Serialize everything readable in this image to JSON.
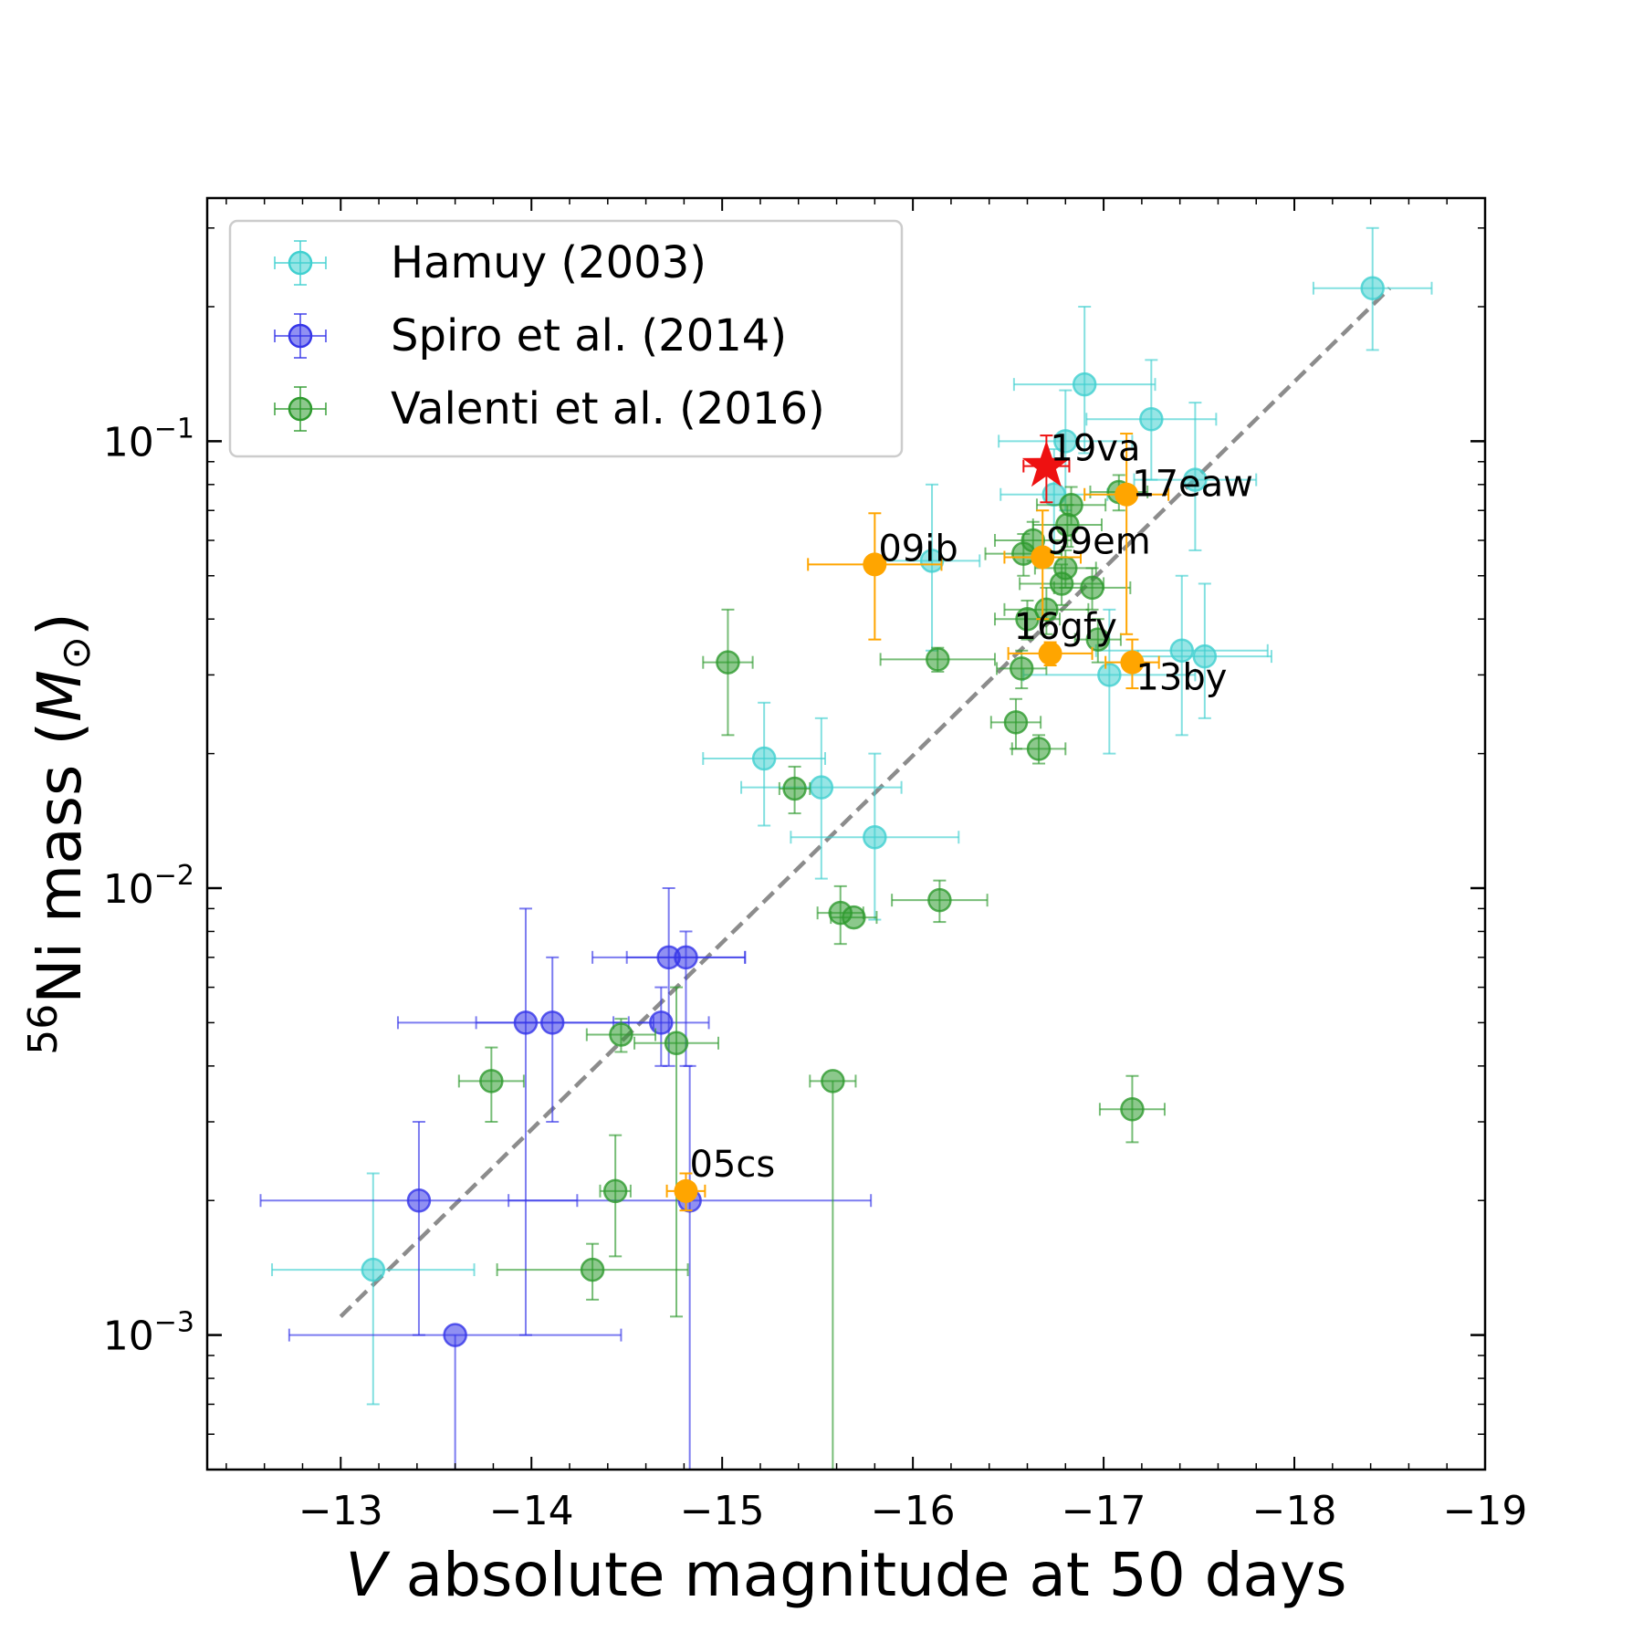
{
  "chart_data": {
    "type": "scatter",
    "title": "",
    "xlabel_italic": "V",
    "xlabel_rest": " absolute magnitude at 50 days",
    "ylabel_sup": "56",
    "ylabel_main": "Ni mass (",
    "ylabel_m": "M",
    "ylabel_sun": "⊙",
    "ylabel_close": ")",
    "xlim": [
      -12.3,
      -19.0
    ],
    "ylim": [
      0.0005,
      0.35
    ],
    "yscale": "log",
    "xticks": [
      -13,
      -14,
      -15,
      -16,
      -17,
      -18,
      -19
    ],
    "xtick_labels": [
      "−13",
      "−14",
      "−15",
      "−16",
      "−17",
      "−18",
      "−19"
    ],
    "yticks": [
      0.001,
      0.01,
      0.1
    ],
    "ytick_bases": [
      "10",
      "10",
      "10"
    ],
    "ytick_exps": [
      "−3",
      "−2",
      "−1"
    ],
    "legend": {
      "position": "top-left",
      "entries": [
        {
          "label": "Hamuy (2003)",
          "series": "hamuy"
        },
        {
          "label": "Spiro et al. (2014)",
          "series": "spiro"
        },
        {
          "label": "Valenti et al. (2016)",
          "series": "valenti"
        }
      ]
    },
    "fit_line": {
      "x": [
        -13.0,
        -18.5
      ],
      "y": [
        0.0011,
        0.22
      ],
      "color": "#8c8c8c",
      "style": "dashed"
    },
    "series": [
      {
        "name": "Hamuy (2003)",
        "key": "hamuy",
        "color": "#40d0d0",
        "points": [
          {
            "x": -13.17,
            "y": 0.0014,
            "xerr": [
              0.53,
              0.53
            ],
            "yerr": [
              0.0007,
              0.0009
            ]
          },
          {
            "x": -15.22,
            "y": 0.0195,
            "xerr": [
              0.32,
              0.32
            ],
            "yerr": [
              0.0057,
              0.0065
            ]
          },
          {
            "x": -15.52,
            "y": 0.0168,
            "xerr": [
              0.42,
              0.42
            ],
            "yerr": [
              0.0063,
              0.0072
            ]
          },
          {
            "x": -15.8,
            "y": 0.013,
            "xerr": [
              0.44,
              0.44
            ],
            "yerr": [
              0.0045,
              0.007
            ]
          },
          {
            "x": -16.1,
            "y": 0.054,
            "xerr": [
              0.25,
              0.25
            ],
            "yerr": [
              0.02,
              0.026
            ]
          },
          {
            "x": -16.74,
            "y": 0.076,
            "xerr": [
              0.28,
              0.28
            ],
            "yerr": [
              0.02,
              0.02
            ]
          },
          {
            "x": -16.8,
            "y": 0.1,
            "xerr": [
              0.35,
              0.35
            ],
            "yerr": [
              0.03,
              0.03
            ]
          },
          {
            "x": -16.9,
            "y": 0.134,
            "xerr": [
              0.37,
              0.37
            ],
            "yerr": [
              0.04,
              0.066
            ]
          },
          {
            "x": -17.25,
            "y": 0.112,
            "xerr": [
              0.34,
              0.34
            ],
            "yerr": [
              0.03,
              0.04
            ]
          },
          {
            "x": -17.48,
            "y": 0.082,
            "xerr": [
              0.32,
              0.32
            ],
            "yerr": [
              0.025,
              0.04
            ]
          },
          {
            "x": -17.03,
            "y": 0.03,
            "xerr": [
              0.45,
              0.45
            ],
            "yerr": [
              0.01,
              0.012
            ]
          },
          {
            "x": -17.41,
            "y": 0.034,
            "xerr": [
              0.45,
              0.45
            ],
            "yerr": [
              0.012,
              0.016
            ]
          },
          {
            "x": -17.53,
            "y": 0.033,
            "xerr": [
              0.35,
              0.35
            ],
            "yerr": [
              0.009,
              0.015
            ]
          },
          {
            "x": -18.41,
            "y": 0.22,
            "xerr": [
              0.31,
              0.31
            ],
            "yerr": [
              0.06,
              0.08
            ]
          }
        ]
      },
      {
        "name": "Spiro et al. (2014)",
        "key": "spiro",
        "color": "#3535e8",
        "points": [
          {
            "x": -13.41,
            "y": 0.002,
            "xerr": [
              0.83,
              0.83
            ],
            "yerr": [
              0.001,
              0.001
            ]
          },
          {
            "x": -13.6,
            "y": 0.001,
            "xerr": [
              0.87,
              0.87
            ],
            "yerr": [
              0.0005,
              0.0
            ]
          },
          {
            "x": -13.97,
            "y": 0.005,
            "xerr": [
              0.67,
              0.67
            ],
            "yerr": [
              0.004,
              0.004
            ]
          },
          {
            "x": -14.11,
            "y": 0.005,
            "xerr": [
              0.4,
              0.4
            ],
            "yerr": [
              0.002,
              0.002
            ]
          },
          {
            "x": -14.68,
            "y": 0.005,
            "xerr": [
              0.25,
              0.25
            ],
            "yerr": [
              0.001,
              0.001
            ]
          },
          {
            "x": -14.72,
            "y": 0.007,
            "xerr": [
              0.4,
              0.4
            ],
            "yerr": [
              0.003,
              0.003
            ]
          },
          {
            "x": -14.81,
            "y": 0.007,
            "xerr": [
              0.31,
              0.31
            ],
            "yerr": [
              0.003,
              0.001
            ]
          },
          {
            "x": -14.83,
            "y": 0.002,
            "xerr": [
              0.95,
              0.95
            ],
            "yerr": [
              0.0015,
              0.002
            ]
          }
        ]
      },
      {
        "name": "Valenti et al. (2016)",
        "key": "valenti",
        "color": "#2e9a2e",
        "points": [
          {
            "x": -13.79,
            "y": 0.0037,
            "xerr": [
              0.17,
              0.17
            ],
            "yerr": [
              0.0007,
              0.0007
            ]
          },
          {
            "x": -14.32,
            "y": 0.0014,
            "xerr": [
              0.5,
              0.5
            ],
            "yerr": [
              0.0002,
              0.0002
            ]
          },
          {
            "x": -14.44,
            "y": 0.0021,
            "xerr": [
              0.08,
              0.08
            ],
            "yerr": [
              0.0006,
              0.0007
            ]
          },
          {
            "x": -14.47,
            "y": 0.0047,
            "xerr": [
              0.18,
              0.18
            ],
            "yerr": [
              0.0004,
              0.0004
            ]
          },
          {
            "x": -14.76,
            "y": 0.0045,
            "xerr": [
              0.22,
              0.22
            ],
            "yerr": [
              0.0034,
              0.0015
            ]
          },
          {
            "x": -15.03,
            "y": 0.032,
            "xerr": [
              0.13,
              0.13
            ],
            "yerr": [
              0.01,
              0.01
            ]
          },
          {
            "x": -15.38,
            "y": 0.0167,
            "xerr": [
              0.08,
              0.08
            ],
            "yerr": [
              0.002,
              0.002
            ]
          },
          {
            "x": -15.58,
            "y": 0.0037,
            "xerr": [
              0.12,
              0.12
            ],
            "yerr": [
              0.0032,
              0.0
            ]
          },
          {
            "x": -15.62,
            "y": 0.0088,
            "xerr": [
              0.12,
              0.12
            ],
            "yerr": [
              0.0013,
              0.0013
            ]
          },
          {
            "x": -15.69,
            "y": 0.0086,
            "xerr": [
              0.12,
              0.12
            ],
            "yerr": [
              0.0,
              0.0
            ]
          },
          {
            "x": -16.13,
            "y": 0.0325,
            "xerr": [
              0.3,
              0.3
            ],
            "yerr": [
              0.002,
              0.002
            ]
          },
          {
            "x": -16.14,
            "y": 0.0094,
            "xerr": [
              0.25,
              0.25
            ],
            "yerr": [
              0.001,
              0.001
            ]
          },
          {
            "x": -16.54,
            "y": 0.0235,
            "xerr": [
              0.13,
              0.13
            ],
            "yerr": [
              0.003,
              0.003
            ]
          },
          {
            "x": -16.57,
            "y": 0.031,
            "xerr": [
              0.13,
              0.13
            ],
            "yerr": [
              0.003,
              0.003
            ]
          },
          {
            "x": -16.6,
            "y": 0.04,
            "xerr": [
              0.17,
              0.17
            ],
            "yerr": [
              0.004,
              0.004
            ]
          },
          {
            "x": -16.58,
            "y": 0.056,
            "xerr": [
              0.2,
              0.2
            ],
            "yerr": [
              0.006,
              0.006
            ]
          },
          {
            "x": -16.63,
            "y": 0.06,
            "xerr": [
              0.2,
              0.2
            ],
            "yerr": [
              0.006,
              0.006
            ]
          },
          {
            "x": -16.66,
            "y": 0.0205,
            "xerr": [
              0.14,
              0.14
            ],
            "yerr": [
              0.0015,
              0.0015
            ]
          },
          {
            "x": -16.7,
            "y": 0.042,
            "xerr": [
              0.22,
              0.22
            ],
            "yerr": [
              0.005,
              0.005
            ]
          },
          {
            "x": -16.78,
            "y": 0.048,
            "xerr": [
              0.22,
              0.22
            ],
            "yerr": [
              0.005,
              0.005
            ]
          },
          {
            "x": -16.8,
            "y": 0.052,
            "xerr": [
              0.16,
              0.16
            ],
            "yerr": [
              0.005,
              0.005
            ]
          },
          {
            "x": -16.81,
            "y": 0.065,
            "xerr": [
              0.18,
              0.18
            ],
            "yerr": [
              0.007,
              0.007
            ]
          },
          {
            "x": -16.83,
            "y": 0.072,
            "xerr": [
              0.18,
              0.18
            ],
            "yerr": [
              0.007,
              0.007
            ]
          },
          {
            "x": -16.94,
            "y": 0.047,
            "xerr": [
              0.2,
              0.2
            ],
            "yerr": [
              0.005,
              0.005
            ]
          },
          {
            "x": -16.97,
            "y": 0.036,
            "xerr": [
              0.12,
              0.12
            ],
            "yerr": [
              0.004,
              0.004
            ]
          },
          {
            "x": -17.08,
            "y": 0.077,
            "xerr": [
              0.15,
              0.15
            ],
            "yerr": [
              0.007,
              0.007
            ]
          },
          {
            "x": -17.15,
            "y": 0.0032,
            "xerr": [
              0.17,
              0.17
            ],
            "yerr": [
              0.0005,
              0.0006
            ]
          }
        ]
      }
    ],
    "highlighted": [
      {
        "label": "05cs",
        "x": -14.81,
        "y": 0.0021,
        "xerr": [
          0.1,
          0.1
        ],
        "yerr": [
          0.0002,
          0.0002
        ],
        "color": "#ffa500"
      },
      {
        "label": "09ib",
        "x": -15.8,
        "y": 0.053,
        "xerr": [
          0.35,
          0.35
        ],
        "yerr": [
          0.017,
          0.016
        ],
        "color": "#ffa500"
      },
      {
        "label": "99em",
        "x": -16.68,
        "y": 0.055,
        "xerr": [
          0.2,
          0.2
        ],
        "yerr": [
          0.015,
          0.015
        ],
        "color": "#ffa500"
      },
      {
        "label": "16gfy",
        "x": -16.72,
        "y": 0.0335,
        "xerr": [
          0.22,
          0.22
        ],
        "yerr": [
          0.002,
          0.002
        ],
        "color": "#ffa500"
      },
      {
        "label": "17eaw",
        "x": -17.12,
        "y": 0.076,
        "xerr": [
          0.22,
          0.22
        ],
        "yerr": [
          0.039,
          0.028
        ],
        "color": "#ffa500"
      },
      {
        "label": "13by",
        "x": -17.15,
        "y": 0.032,
        "xerr": [
          0.14,
          0.14
        ],
        "yerr": [
          0.004,
          0.004
        ],
        "color": "#ffa500"
      }
    ],
    "star": {
      "label": "19va",
      "x": -16.7,
      "y": 0.088,
      "xerr": [
        0.12,
        0.12
      ],
      "yerr": [
        0.015,
        0.015
      ],
      "color": "#ee1111"
    }
  }
}
